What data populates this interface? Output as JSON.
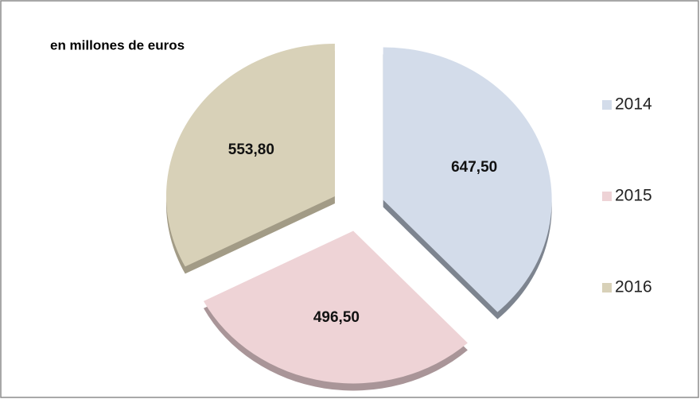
{
  "chart_data": {
    "type": "pie",
    "title": "en millones de euros",
    "categories": [
      "2014",
      "2015",
      "2016"
    ],
    "values": [
      647.5,
      496.5,
      553.8
    ],
    "value_labels": [
      "647,50",
      "496,50",
      "553,80"
    ],
    "colors": [
      "#d3dcea",
      "#eed3d6",
      "#d8d1b8"
    ],
    "shadow_colors": [
      "#7d848f",
      "#a99598",
      "#a29b86"
    ],
    "legend": "right"
  }
}
